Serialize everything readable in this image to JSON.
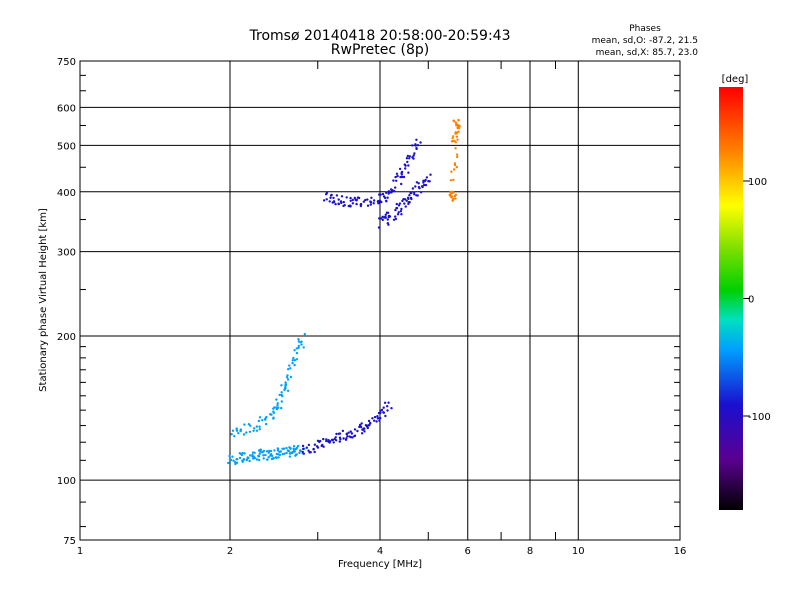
{
  "chart_data": {
    "type": "scatter",
    "title": "Tromsø 20140418 20:58:00-20:59:43",
    "subtitle": "RwPretec (8p)",
    "phases": {
      "heading": "Phases",
      "line1": "mean, sd,O:  -87.2, 21.5",
      "line2": "mean, sd,X:  85.7, 23.0"
    },
    "xlabel": "Frequency [MHz]",
    "ylabel": "Stationary phase Virtual Height [km]",
    "xscale": "log",
    "yscale": "log",
    "xlim": [
      1,
      16
    ],
    "ylim": [
      75,
      750
    ],
    "grid": true,
    "x_major_ticks": [
      1,
      2,
      4,
      6,
      8,
      10,
      16
    ],
    "x_minor_ticks": [
      3,
      5,
      7,
      9
    ],
    "x_tick_labels": [
      "1",
      "2",
      "4",
      "6",
      "8",
      "10",
      "16"
    ],
    "y_major_ticks": [
      100,
      200,
      300,
      400,
      500,
      600
    ],
    "y_minor_ticks": [
      75,
      750
    ],
    "y_tick_labels": [
      "100",
      "200",
      "300",
      "400",
      "500",
      "600",
      "750",
      "75"
    ],
    "colorbar": {
      "label": "[deg]",
      "min": -180,
      "max": 180,
      "ticks": [
        100,
        0,
        -100
      ],
      "tick_labels": [
        "100",
        "0",
        "-100"
      ],
      "placement": "right"
    },
    "traces": [
      {
        "name_ref": "O-trace lower layer",
        "phase": -70,
        "x": [
          2.0,
          2.1,
          2.2,
          2.3,
          2.4,
          2.5,
          2.6,
          2.7,
          2.8
        ],
        "y": [
          110,
          111,
          112,
          113,
          113,
          114,
          114,
          115,
          116
        ]
      },
      {
        "name_ref": "X-trace lower layer",
        "phase": -110,
        "x": [
          2.8,
          3.0,
          3.2,
          3.4,
          3.6,
          3.8,
          4.0,
          4.2
        ],
        "y": [
          116,
          118,
          121,
          124,
          127,
          130,
          136,
          145
        ]
      },
      {
        "name_ref": "O-trace F1",
        "phase": -60,
        "x": [
          2.0,
          2.2,
          2.4,
          2.5,
          2.6,
          2.7,
          2.8
        ],
        "y": [
          125,
          128,
          135,
          145,
          160,
          180,
          200
        ]
      },
      {
        "name_ref": "X-trace F2",
        "phase": -110,
        "x": [
          3.1,
          3.3,
          3.5,
          3.7,
          4.0,
          4.2,
          4.4,
          4.6,
          4.8
        ],
        "y": [
          390,
          385,
          380,
          380,
          385,
          400,
          430,
          470,
          510
        ]
      },
      {
        "name_ref": "X-trace F2 lower",
        "phase": -110,
        "x": [
          4.0,
          4.2,
          4.4,
          4.6,
          4.8,
          5.0
        ],
        "y": [
          345,
          355,
          370,
          390,
          410,
          430
        ]
      },
      {
        "name_ref": "yellow",
        "phase": 110,
        "x": [
          5.6,
          5.6,
          5.65,
          5.7,
          5.7
        ],
        "y": [
          390,
          400,
          520,
          545,
          560
        ]
      }
    ]
  }
}
